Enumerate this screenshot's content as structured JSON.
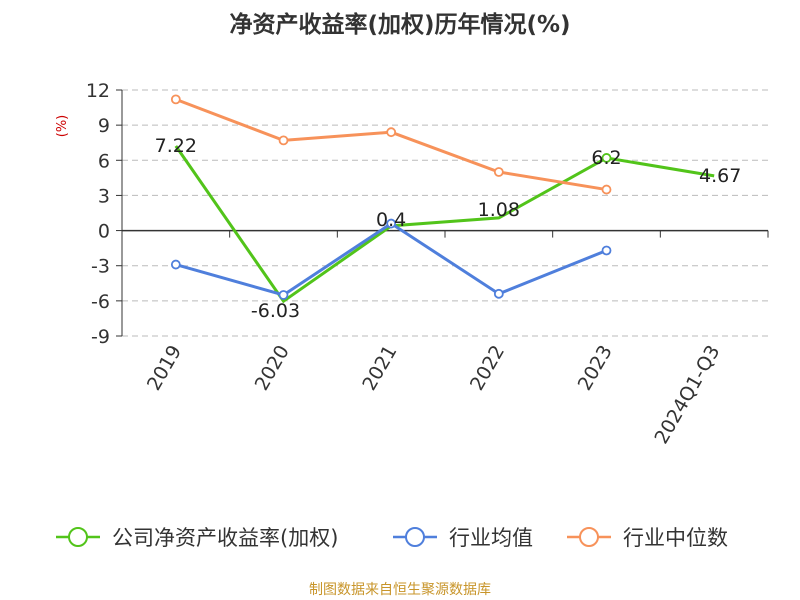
{
  "chart_data": {
    "type": "line",
    "title": "净资产收益率(加权)历年情况(%)",
    "ylabel": "(%)",
    "xlabel": "",
    "categories": [
      "2019",
      "2020",
      "2021",
      "2022",
      "2023",
      "2024Q1-Q3"
    ],
    "y_ticks": [
      12,
      9,
      6,
      3,
      0,
      -3,
      -6,
      -9
    ],
    "y_tick_labels": [
      "12",
      "9",
      "6",
      "3",
      "0",
      "-3",
      "-6",
      "-9"
    ],
    "ylim": [
      -9,
      12
    ],
    "grid": true,
    "legend_position": "bottom",
    "series": [
      {
        "name": "公司净资产收益率(加权)",
        "color": "#52c41a",
        "values": [
          7.22,
          -6.03,
          0.4,
          1.08,
          6.2,
          4.67
        ],
        "labels": [
          "7.22",
          "-6.03",
          "0.4",
          "1.08",
          "6.2",
          "4.67"
        ],
        "marker_visible": [
          false,
          false,
          false,
          false,
          true,
          false
        ]
      },
      {
        "name": "行业均值",
        "color": "#4f7fdc",
        "values": [
          -2.9,
          -5.5,
          0.6,
          -5.4,
          -1.7,
          null
        ],
        "marker_visible": [
          true,
          true,
          true,
          true,
          true,
          false
        ]
      },
      {
        "name": "行业中位数",
        "color": "#f7925a",
        "values": [
          11.2,
          7.7,
          8.4,
          5.0,
          3.5,
          null
        ],
        "marker_visible": [
          true,
          true,
          true,
          true,
          true,
          false
        ]
      }
    ]
  },
  "footer": {
    "source": "制图数据来自恒生聚源数据库",
    "source_color": "#c8952a"
  }
}
